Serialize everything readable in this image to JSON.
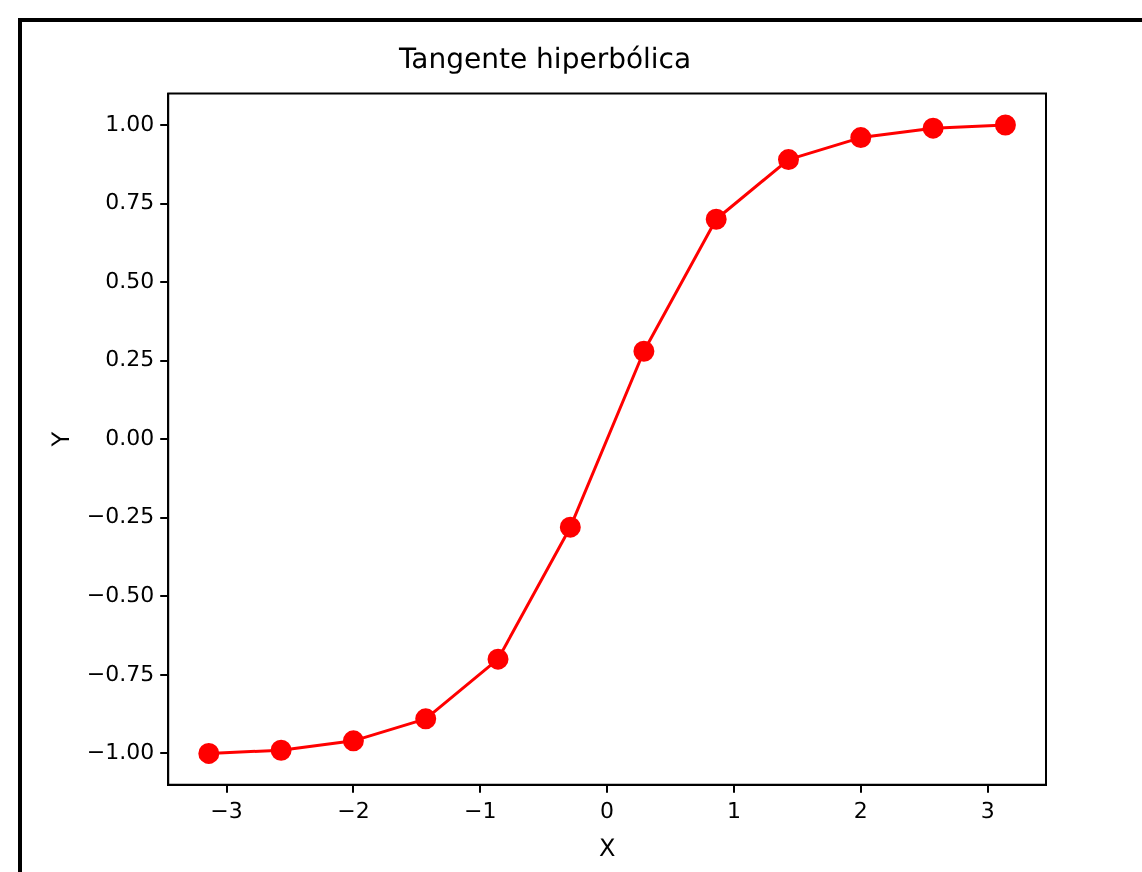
{
  "chart_data": {
    "type": "line",
    "title": "Tangente hiperbólica",
    "xlabel": "X",
    "ylabel": "Y",
    "x": [
      -3.14,
      -2.57,
      -2.0,
      -1.43,
      -0.86,
      -0.29,
      0.29,
      0.86,
      1.43,
      2.0,
      2.57,
      3.14
    ],
    "series": [
      {
        "color": "#ff0000",
        "values": [
          -1.0,
          -0.99,
          -0.96,
          -0.89,
          -0.7,
          -0.28,
          0.28,
          0.7,
          0.89,
          0.96,
          0.99,
          1.0
        ]
      }
    ],
    "xlim": [
      -3.46,
      3.46
    ],
    "xticks": [
      {
        "value": -3,
        "label": "−3"
      },
      {
        "value": -2,
        "label": "−2"
      },
      {
        "value": -1,
        "label": "−1"
      },
      0,
      1,
      2,
      3
    ],
    "ylim": [
      -1.1,
      1.1
    ],
    "yticks": [
      {
        "value": -1,
        "label": "−1.00"
      },
      {
        "value": -0.75,
        "label": "−0.75"
      },
      {
        "value": -0.5,
        "label": "−0.50"
      },
      {
        "value": -0.25,
        "label": "−0.25"
      },
      {
        "value": 0,
        "label": "0.00"
      },
      0.25,
      {
        "value": 0.5,
        "label": "0.50"
      },
      0.75,
      {
        "value": 1,
        "label": "1.00"
      }
    ],
    "grid": false,
    "legend": false,
    "marker": "circle",
    "line_style": "solid"
  }
}
